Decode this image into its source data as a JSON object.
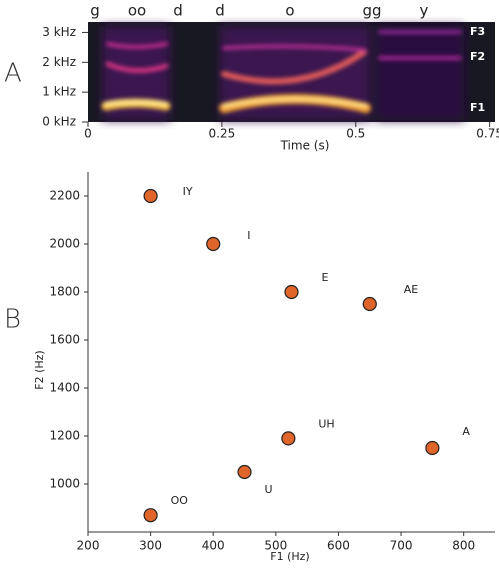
{
  "chart_data": [
    {
      "type": "spectrogram",
      "panel_label": "A",
      "segments": [
        "g",
        "oo",
        "d",
        "d",
        "o",
        "gg",
        "y"
      ],
      "formant_labels": [
        "F3",
        "F2",
        "F1"
      ],
      "xlabel": "Time (s)",
      "xlim": [
        0,
        0.76
      ],
      "xticks": [
        0,
        0.25,
        0.5,
        0.75
      ],
      "ylim": [
        0,
        3.35
      ],
      "yticks": [
        {
          "value": 0,
          "label": "0 kHz"
        },
        {
          "value": 1,
          "label": "1 kHz"
        },
        {
          "value": 2,
          "label": "2 kHz"
        },
        {
          "value": 3,
          "label": "3 kHz"
        }
      ]
    },
    {
      "type": "scatter",
      "panel_label": "B",
      "xlabel": "F1 (Hz)",
      "ylabel": "F2 (Hz)",
      "labels": [
        "IY",
        "I",
        "E",
        "AE",
        "UH",
        "A",
        "U",
        "OO"
      ],
      "x": [
        300,
        400,
        525,
        650,
        520,
        750,
        450,
        300
      ],
      "y": [
        2200,
        2000,
        1800,
        1750,
        1190,
        1150,
        1050,
        870
      ],
      "color": "#e0652a",
      "xlim": [
        200,
        850
      ],
      "xticks": [
        200,
        300,
        400,
        500,
        600,
        700,
        800
      ],
      "ylim": [
        800,
        2300
      ],
      "yticks": [
        1000,
        1200,
        1400,
        1600,
        1800,
        2000,
        2200
      ]
    }
  ]
}
